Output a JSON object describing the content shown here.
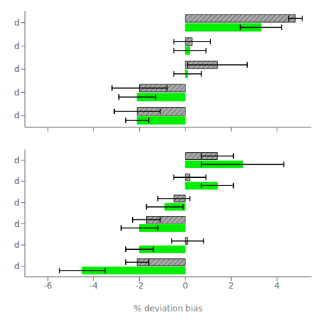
{
  "chart_data": [
    {
      "type": "bar",
      "orientation": "horizontal",
      "categories": [
        "d",
        "d",
        "d",
        "d",
        "d"
      ],
      "series": [
        {
          "color": "#aaaaaa",
          "values": [
            4.8,
            0.3,
            1.4,
            -2.0,
            -2.1
          ],
          "errors": [
            0.3,
            0.8,
            1.3,
            1.2,
            1.0
          ]
        },
        {
          "color": "#00ee00",
          "values": [
            3.3,
            0.2,
            0.1,
            -2.1,
            -2.1
          ],
          "errors": [
            0.9,
            0.7,
            0.6,
            0.8,
            0.5
          ]
        }
      ],
      "xlim": [
        -7.0,
        5.5
      ],
      "xticks": [
        -6,
        -4,
        -2,
        0,
        2,
        4
      ],
      "tick_labels": "y"
    },
    {
      "type": "bar",
      "orientation": "horizontal",
      "xlabel": "% deviation bias",
      "categories": [
        "d",
        "d",
        "d",
        "d",
        "d",
        "d"
      ],
      "series": [
        {
          "color": "#aaaaaa",
          "values": [
            1.4,
            0.2,
            -0.5,
            -1.7,
            0.1,
            -2.1
          ],
          "errors": [
            0.7,
            0.7,
            0.7,
            0.6,
            0.7,
            0.5
          ]
        },
        {
          "color": "#00ee00",
          "values": [
            2.5,
            1.4,
            -0.9,
            -2.0,
            -2.0,
            -4.5
          ],
          "errors": [
            1.8,
            0.7,
            0.8,
            0.8,
            0.6,
            1.0
          ]
        }
      ],
      "xlim": [
        -7.0,
        5.5
      ],
      "xticks": [
        -6,
        -4,
        -2,
        0,
        2,
        4
      ]
    }
  ]
}
